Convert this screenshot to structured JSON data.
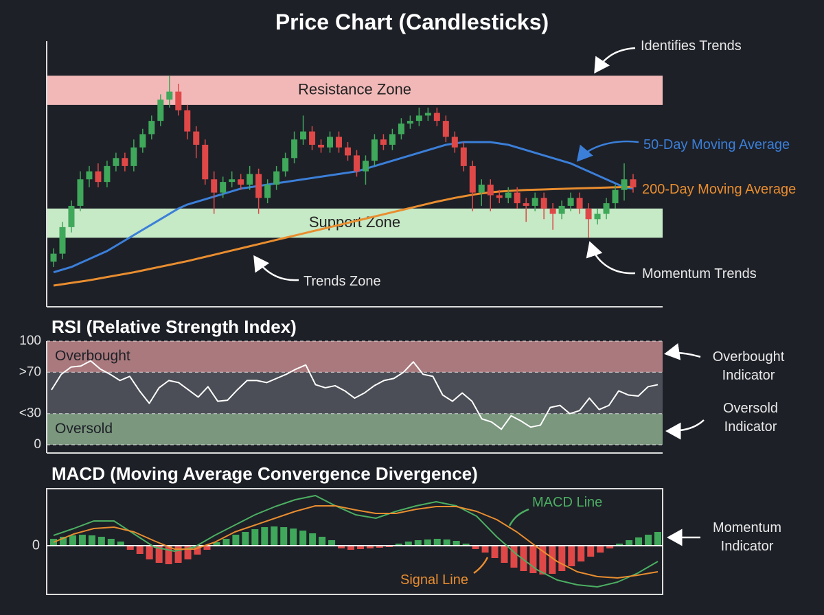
{
  "chart_data": [
    {
      "type": "candlestick",
      "title": "Price Chart (Candlesticks)",
      "open": [
        17,
        20,
        30,
        38,
        48,
        51,
        47,
        53,
        56,
        53,
        60,
        65,
        70,
        78,
        81,
        74,
        66,
        61,
        48,
        43,
        47,
        48,
        46,
        50,
        41,
        46,
        51,
        56,
        63,
        66,
        61,
        60,
        64,
        60,
        57,
        51,
        55,
        63,
        61,
        65,
        69,
        70,
        72,
        73,
        70,
        64,
        60,
        53,
        43,
        46,
        42,
        41,
        43,
        39,
        38,
        41,
        37,
        35,
        38,
        41,
        37,
        33,
        35,
        39,
        44,
        48
      ],
      "high": [
        22,
        32,
        40,
        51,
        53,
        54,
        55,
        58,
        58,
        63,
        67,
        72,
        80,
        87,
        84,
        76,
        68,
        63,
        51,
        49,
        51,
        50,
        53,
        52,
        48,
        53,
        58,
        66,
        72,
        68,
        63,
        66,
        66,
        62,
        59,
        57,
        65,
        65,
        67,
        71,
        72,
        75,
        75,
        75,
        72,
        66,
        62,
        55,
        48,
        48,
        44,
        45,
        45,
        41,
        43,
        43,
        39,
        40,
        43,
        43,
        39,
        37,
        41,
        46,
        54,
        50
      ],
      "low": [
        15,
        18,
        28,
        36,
        45,
        45,
        45,
        51,
        51,
        51,
        58,
        63,
        68,
        75,
        72,
        63,
        56,
        46,
        35,
        41,
        45,
        44,
        44,
        35,
        39,
        44,
        49,
        54,
        61,
        59,
        58,
        58,
        58,
        55,
        49,
        46,
        53,
        59,
        59,
        63,
        67,
        68,
        70,
        68,
        62,
        58,
        51,
        36,
        38,
        36,
        39,
        39,
        37,
        32,
        36,
        33,
        29,
        33,
        36,
        35,
        26,
        31,
        33,
        37,
        40,
        43
      ],
      "close": [
        20,
        30,
        38,
        48,
        51,
        47,
        53,
        56,
        53,
        60,
        65,
        70,
        78,
        81,
        74,
        66,
        61,
        48,
        43,
        47,
        48,
        46,
        50,
        41,
        46,
        51,
        56,
        63,
        66,
        61,
        60,
        64,
        60,
        57,
        51,
        55,
        63,
        61,
        65,
        69,
        70,
        72,
        73,
        70,
        64,
        60,
        53,
        43,
        46,
        42,
        41,
        43,
        39,
        38,
        41,
        37,
        35,
        38,
        41,
        37,
        33,
        35,
        39,
        44,
        48,
        45
      ],
      "up_color": "#3fa85a",
      "down_color": "#e04848",
      "ylim": [
        0,
        100
      ],
      "zones": [
        {
          "label": "Resistance Zone",
          "range": [
            76,
            87
          ],
          "color": "#f2b8b8"
        },
        {
          "label": "Support Zone",
          "range": [
            26,
            37
          ],
          "color": "#c6e9c6"
        }
      ],
      "series": [
        {
          "name": "50-Day Moving Average",
          "color": "#3b7fd9",
          "values": [
            13,
            14,
            15,
            16.5,
            18,
            19.5,
            21,
            23,
            25,
            27,
            29,
            31,
            33,
            35,
            37,
            38.5,
            39.5,
            40.5,
            41.5,
            42.5,
            43.5,
            44.5,
            45,
            45.5,
            46,
            46.5,
            47,
            47.5,
            48,
            48.5,
            49,
            49.5,
            50,
            50.5,
            51,
            52,
            53,
            54,
            55,
            56,
            57,
            58,
            59,
            60,
            61,
            61.5,
            62,
            62,
            62,
            62,
            61.5,
            61,
            60,
            59,
            58,
            57,
            56,
            55,
            54,
            52.5,
            51,
            49.5,
            48,
            46.5,
            45,
            44.5
          ]
        },
        {
          "name": "200-Day Moving Average",
          "color": "#e98d2f",
          "values": [
            8,
            8.5,
            9,
            9.5,
            10,
            10.6,
            11.2,
            11.8,
            12.4,
            13,
            13.7,
            14.4,
            15.1,
            15.8,
            16.5,
            17.2,
            18,
            18.8,
            19.6,
            20.4,
            21.2,
            22,
            22.8,
            23.6,
            24.4,
            25.2,
            26,
            26.8,
            27.6,
            28.4,
            29.2,
            30,
            30.8,
            31.6,
            32.4,
            33.2,
            34,
            34.8,
            35.6,
            36.4,
            37.2,
            38,
            38.8,
            39.6,
            40.3,
            41,
            41.6,
            42.2,
            42.7,
            43.1,
            43.4,
            43.6,
            43.8,
            44,
            44.1,
            44.2,
            44.3,
            44.4,
            44.5,
            44.6,
            44.7,
            44.8,
            44.9,
            45,
            45.1,
            45.2
          ]
        }
      ],
      "annotations": [
        "Identifies Trends",
        "Trends Zone",
        "Momentum Trends"
      ]
    },
    {
      "type": "line",
      "title": "RSI (Relative Strength Index)",
      "series": [
        {
          "color": "#ffffff",
          "values": [
            53,
            68,
            75,
            76,
            81,
            73,
            68,
            62,
            66,
            52,
            40,
            55,
            62,
            60,
            53,
            46,
            56,
            42,
            43,
            53,
            62,
            62,
            60,
            64,
            68,
            73,
            77,
            58,
            55,
            57,
            52,
            45,
            50,
            57,
            62,
            64,
            70,
            80,
            68,
            66,
            48,
            42,
            50,
            42,
            25,
            22,
            15,
            28,
            23,
            17,
            19,
            36,
            38,
            30,
            33,
            45,
            34,
            38,
            52,
            48,
            47,
            56,
            58
          ]
        }
      ],
      "ylim": [
        0,
        100
      ],
      "yticks": [
        100,
        {
          "value": 70,
          "label": ">70"
        },
        {
          "value": 30,
          "label": "<30"
        },
        0
      ],
      "grid": "dashed",
      "zones": [
        {
          "label": "Overbought",
          "range": [
            70,
            100
          ],
          "color": "#a9797d"
        },
        {
          "label": "Oversold",
          "range": [
            0,
            30
          ],
          "color": "#7b977e"
        }
      ],
      "annotations": [
        "Overbought Indicator",
        "Oversold Indicator"
      ]
    },
    {
      "type": "combo",
      "title": "MACD (Moving Average Convergence Divergence)",
      "series": [
        {
          "kind": "bar",
          "color": "#3fa85a",
          "negative_color": "#e04848",
          "values": [
            1.0,
            1.3,
            1.5,
            1.6,
            1.5,
            1.3,
            1.0,
            0.6,
            -0.6,
            -1.2,
            -2.0,
            -2.5,
            -2.7,
            -2.5,
            -2.0,
            -1.3,
            -0.6,
            0.5,
            1.0,
            1.6,
            2.0,
            2.4,
            2.7,
            2.8,
            2.7,
            2.5,
            2.2,
            1.8,
            1.3,
            0.8,
            -0.4,
            -0.6,
            -0.5,
            -0.4,
            -0.3,
            -0.2,
            0.3,
            0.6,
            0.8,
            0.9,
            1.0,
            0.9,
            0.7,
            0.3,
            -0.5,
            -1.0,
            -1.8,
            -2.5,
            -3.2,
            -3.7,
            -4.0,
            -4.2,
            -4.1,
            -3.7,
            -3.0,
            -2.3,
            -1.6,
            -1.0,
            -0.4,
            0.3,
            0.8,
            1.2,
            1.6,
            2.0
          ]
        },
        {
          "kind": "line",
          "name": "MACD Line",
          "color": "#4caf62",
          "values": [
            1.5,
            2.5,
            3.6,
            3.6,
            1.7,
            -0.2,
            -0.8,
            -0.2,
            1.5,
            3.0,
            4.5,
            5.7,
            6.7,
            7.3,
            5.8,
            4.5,
            4.0,
            5.0,
            5.8,
            6.4,
            5.8,
            4.3,
            1.3,
            -1.3,
            -3.5,
            -5.0,
            -5.7,
            -6.0,
            -5.3,
            -4.0,
            -2.3
          ]
        },
        {
          "kind": "line",
          "name": "Signal Line",
          "color": "#e98d2f",
          "values": [
            0.5,
            1.7,
            2.5,
            2.7,
            2.0,
            0.7,
            -0.5,
            -0.5,
            0.5,
            2.0,
            3.0,
            4.0,
            5.0,
            5.8,
            5.8,
            5.2,
            4.7,
            4.7,
            5.3,
            5.7,
            5.7,
            5.0,
            3.8,
            2.0,
            -0.2,
            -2.3,
            -3.8,
            -4.5,
            -4.7,
            -4.3,
            -3.8
          ]
        }
      ],
      "ylim": [
        -7.1,
        8.3
      ],
      "yticks": [
        0
      ],
      "grid": "solid",
      "annotations": [
        "Momentum Indicator"
      ]
    }
  ]
}
